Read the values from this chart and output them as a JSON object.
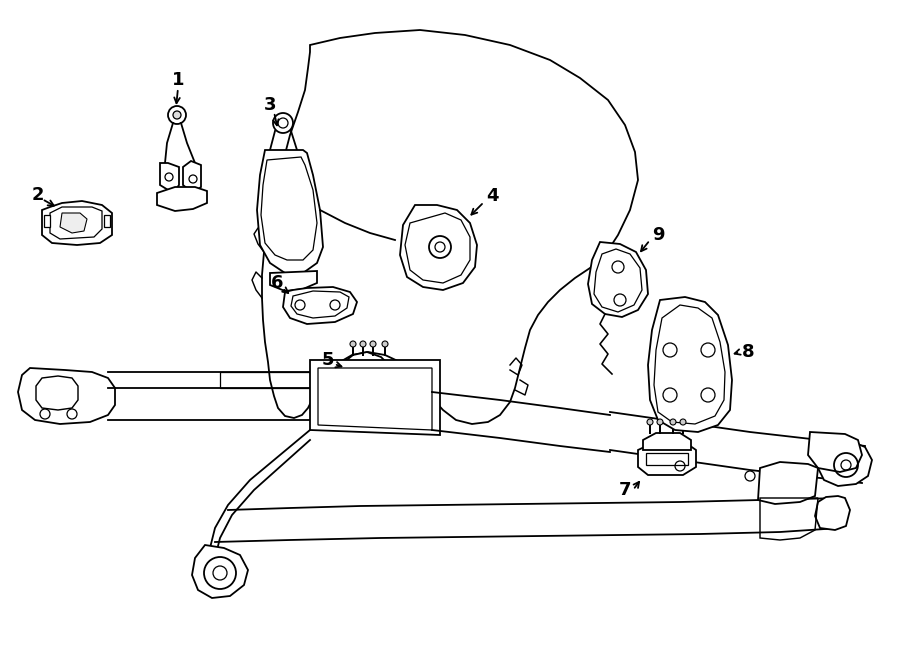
{
  "bg_color": "#ffffff",
  "line_color": "#000000",
  "lw": 1.3,
  "fig_w": 9.0,
  "fig_h": 6.61,
  "dpi": 100
}
